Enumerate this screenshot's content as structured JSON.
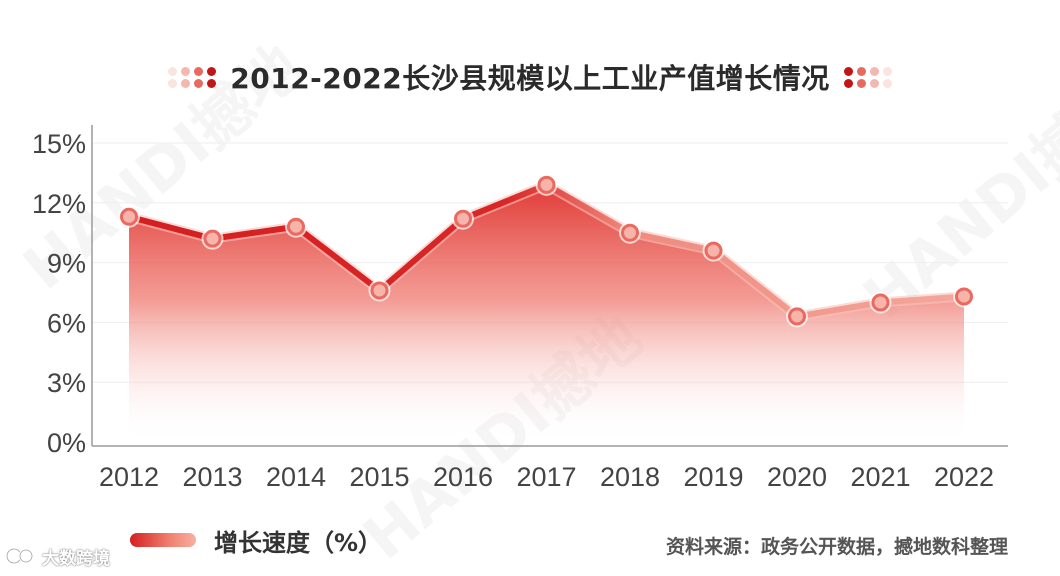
{
  "title": "2012-2022长沙县规模以上工业产值增长情况",
  "legend_label": "增长速度（%）",
  "source": "资料来源：政务公开数据，撼地数科整理",
  "logo_text": "大数跨境",
  "watermark_text": "HANDI撼地",
  "colors": {
    "line_dark": "#d41f1f",
    "line_light": "#f19488",
    "area_top": "#e23a35",
    "marker_fill": "#f6b4aa",
    "marker_stroke": "#ea6a60",
    "grid": "#eeeeee",
    "axis": "#9a9a9a",
    "text": "#333333"
  },
  "chart_data": {
    "type": "area",
    "categories": [
      "2012",
      "2013",
      "2014",
      "2015",
      "2016",
      "2017",
      "2018",
      "2019",
      "2020",
      "2021",
      "2022"
    ],
    "series": [
      {
        "name": "增长速度（%）",
        "values": [
          11.3,
          10.2,
          10.8,
          7.6,
          11.2,
          12.9,
          10.5,
          9.6,
          6.3,
          7.0,
          7.3
        ]
      }
    ],
    "yticks": [
      "0%",
      "3%",
      "6%",
      "9%",
      "12%",
      "15%"
    ],
    "ylim": [
      0,
      15
    ],
    "grid": true,
    "legend_position": "bottom-left"
  }
}
